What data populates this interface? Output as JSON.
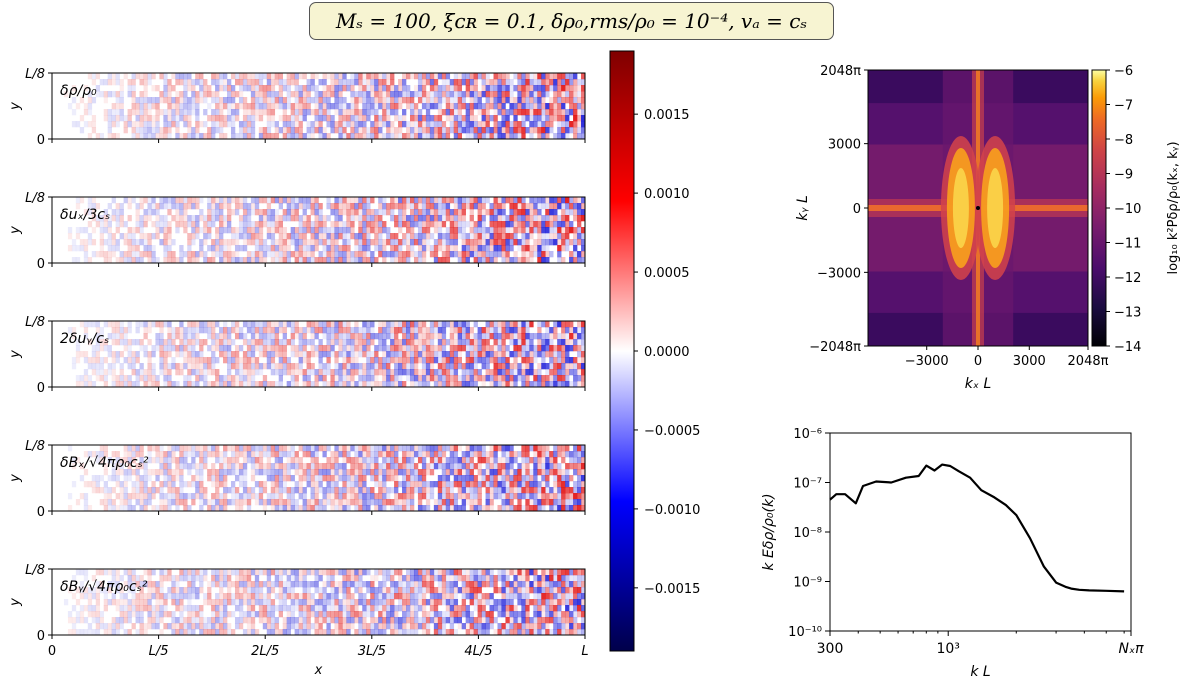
{
  "title": "Mₛ = 100, ξᴄʀ = 0.1, δρ₀,rms/ρ₀ = 10⁻⁴, vₐ = cₛ",
  "colors": {
    "field_blue": "#00004a",
    "field_red": "#7f0000",
    "inferno_dark": "#000004",
    "inferno_bright": "#fcffa4",
    "line": "#000000"
  },
  "chart_data": [
    {
      "type": "heatmap",
      "description_panel": "real-space fields",
      "panels": [
        {
          "label": "δρ/ρ₀"
        },
        {
          "label": "δuₓ/3cₛ"
        },
        {
          "label": "2δuᵧ/cₛ"
        },
        {
          "label": "δBₓ/√4πρ₀cₛ²"
        },
        {
          "label": "δBᵧ/√4πρ₀cₛ²"
        }
      ],
      "y_ticks": [
        "0",
        "L/8"
      ],
      "ylabel": "y",
      "x_ticks": [
        "0",
        "L/5",
        "2L/5",
        "3L/5",
        "4L/5",
        "L"
      ],
      "xlabel": "x",
      "colormap": "seismic",
      "clim": [
        -0.0019,
        0.0019
      ],
      "colorbar_ticks": [
        0.0015,
        0.001,
        0.0005,
        0.0,
        -0.0005,
        -0.001,
        -0.0015
      ],
      "colorbar_tick_labels": [
        "0.0015",
        "0.0010",
        "0.0005",
        "0.0000",
        "−0.0005",
        "−0.0010",
        "−0.0015"
      ],
      "amplitude_vs_x": {
        "x_fraction": [
          0,
          0.2,
          0.4,
          0.6,
          0.8,
          1.0
        ],
        "relative_amplitude": [
          0.05,
          0.35,
          0.45,
          0.6,
          0.8,
          1.0
        ]
      }
    },
    {
      "type": "heatmap",
      "description_panel": "2D power spectrum",
      "xlabel": "kₓ L",
      "ylabel": "kᵧ L",
      "x_ticks": [
        "−3000",
        "0",
        "3000",
        "2048π"
      ],
      "y_ticks": [
        "2048π",
        "3000",
        "0",
        "−3000",
        "−2048π"
      ],
      "xlim": [
        -6434,
        6434
      ],
      "ylim": [
        -6434,
        6434
      ],
      "colormap": "inferno",
      "clim": [
        -14,
        -6
      ],
      "colorbar_label": "log₁₀ k²Pδρ/ρ₀(kₓ, kᵧ)",
      "colorbar_ticks": [
        "−6",
        "−7",
        "−8",
        "−9",
        "−10",
        "−11",
        "−12",
        "−13",
        "−14"
      ]
    },
    {
      "type": "line",
      "description_panel": "1D spectrum",
      "xlabel": "k L",
      "ylabel": "k Eδρ/ρ₀(k)",
      "x_scale": "log",
      "y_scale": "log",
      "xlim": [
        300,
        6434
      ],
      "ylim": [
        1e-10,
        1e-06
      ],
      "x_ticks": [
        "300",
        "10³",
        "Nₓπ"
      ],
      "y_ticks": [
        "10⁻⁶",
        "10⁻⁷",
        "10⁻⁸",
        "10⁻⁹",
        "10⁻¹⁰"
      ],
      "x": [
        300,
        320,
        350,
        390,
        420,
        480,
        560,
        650,
        740,
        800,
        870,
        940,
        1020,
        1110,
        1250,
        1400,
        1600,
        1800,
        2000,
        2300,
        2650,
        3000,
        3300,
        3500,
        3800,
        4200,
        5000,
        6000
      ],
      "y": [
        4.5e-08,
        5.8e-08,
        5.8e-08,
        3.8e-08,
        8.5e-08,
        1.05e-07,
        1e-07,
        1.25e-07,
        1.35e-07,
        2.2e-07,
        1.75e-07,
        2.3e-07,
        2.15e-07,
        1.7e-07,
        1.25e-07,
        7e-08,
        5e-08,
        3.5e-08,
        2.2e-08,
        7.5e-09,
        2e-09,
        9.5e-10,
        7.8e-10,
        7.2e-10,
        6.8e-10,
        6.6e-10,
        6.5e-10,
        6.3e-10
      ]
    }
  ]
}
